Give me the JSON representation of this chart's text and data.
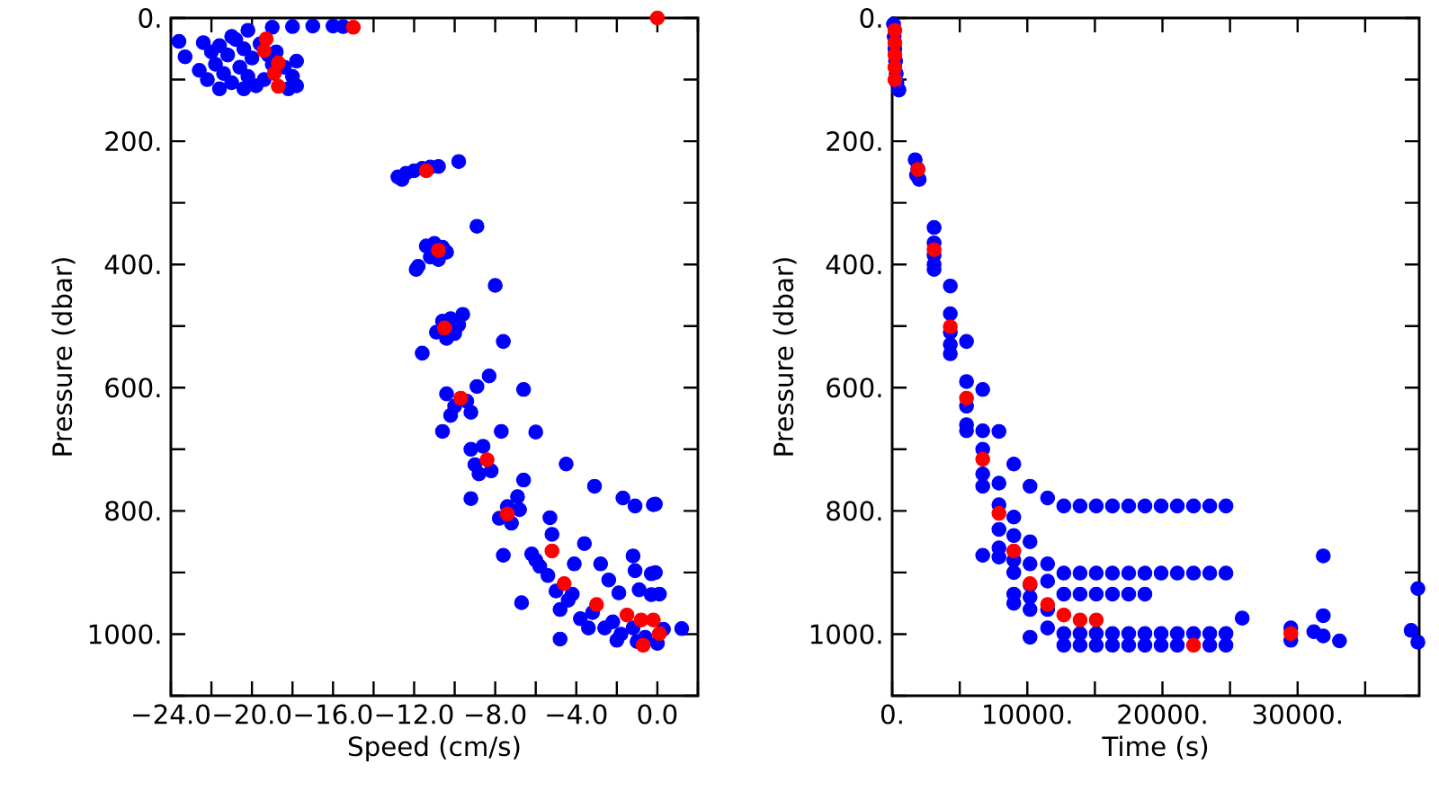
{
  "chart_data": [
    {
      "type": "scatter",
      "xlabel": "Speed (cm/s)",
      "ylabel": "Pressure (dbar)",
      "marker": "circle",
      "grid": false,
      "xlim": [
        -24,
        2
      ],
      "ylim": [
        1100,
        0
      ],
      "xticks": [
        {
          "value": -24,
          "label": "−24.0"
        },
        {
          "value": -22,
          "label": null
        },
        {
          "value": -20,
          "label": "−20.0"
        },
        {
          "value": -18,
          "label": null
        },
        {
          "value": -16,
          "label": "−16.0"
        },
        {
          "value": -14,
          "label": null
        },
        {
          "value": -12,
          "label": "−12.0"
        },
        {
          "value": -10,
          "label": null
        },
        {
          "value": -8,
          "label": "−8.0"
        },
        {
          "value": -6,
          "label": null
        },
        {
          "value": -4,
          "label": "−4.0"
        },
        {
          "value": -2,
          "label": null
        },
        {
          "value": 0,
          "label": "0.0"
        },
        {
          "value": 2,
          "label": null
        }
      ],
      "yticks": [
        {
          "value": 0,
          "label": "0."
        },
        {
          "value": 100,
          "label": null
        },
        {
          "value": 200,
          "label": "200."
        },
        {
          "value": 300,
          "label": null
        },
        {
          "value": 400,
          "label": "400."
        },
        {
          "value": 500,
          "label": null
        },
        {
          "value": 600,
          "label": "600."
        },
        {
          "value": 700,
          "label": null
        },
        {
          "value": 800,
          "label": "800."
        },
        {
          "value": 900,
          "label": null
        },
        {
          "value": 1000,
          "label": "1000."
        },
        {
          "value": 1100,
          "label": null
        }
      ],
      "series": [
        {
          "color": "#0000ff",
          "x": [
            -23.6,
            -23.3,
            -22.4,
            -22.0,
            -21.6,
            -21.2,
            -20.8,
            -20.4,
            -20.0,
            -19.6,
            -21.8,
            -21.4,
            -21.0,
            -20.6,
            -20.2,
            -19.8,
            -19.2,
            -18.8,
            -18.4,
            -18.0,
            -17.8,
            -18.2,
            -19.4,
            -20.4,
            -21.6,
            -22.6,
            -22.2,
            -20.2,
            -19.0,
            -17.8,
            -21.0,
            -19.0,
            -18.0,
            -17.0,
            -16.0,
            -15.5,
            -12.8,
            -12.4,
            -12.0,
            -11.6,
            -11.2,
            -12.6,
            -10.8,
            -9.8,
            -8.9,
            -11.4,
            -11.0,
            -10.6,
            -11.2,
            -10.8,
            -10.4,
            -11.8,
            -11.9,
            -8.0,
            -10.9,
            -10.6,
            -10.2,
            -9.8,
            -10.4,
            -10.0,
            -9.6,
            -11.6,
            -7.6,
            -10.4,
            -10.0,
            -9.4,
            -9.2,
            -10.2,
            -8.9,
            -8.3,
            -6.6,
            -10.6,
            -7.7,
            -6.0,
            -9.2,
            -8.8,
            -8.2,
            -9.0,
            -8.6,
            -6.6,
            -9.2,
            -4.5,
            -3.1,
            -1.7,
            -1.1,
            -0.2,
            -0.1,
            -7.8,
            -7.2,
            -6.8,
            -7.4,
            -6.9,
            -5.3,
            -5.2,
            -7.6,
            -3.6,
            -6.2,
            -5.8,
            -5.4,
            -6.0,
            -4.1,
            -2.8,
            -1.2,
            -1.1,
            -0.3,
            -0.1,
            -2.4,
            -1.9,
            -0.9,
            -0.3,
            0.1,
            -5.0,
            -4.4,
            -4.8,
            -4.2,
            -6.7,
            -4.8,
            -3.8,
            -3.2,
            -2.6,
            -2.2,
            -1.8,
            -1.2,
            -0.6,
            0.0,
            0.3,
            -3.4,
            -2.0,
            -1.0,
            1.2
          ],
          "values": [
            38,
            63,
            40,
            55,
            45,
            60,
            35,
            50,
            65,
            42,
            75,
            90,
            105,
            80,
            95,
            110,
            60,
            55,
            80,
            95,
            110,
            115,
            100,
            115,
            115,
            85,
            100,
            20,
            75,
            70,
            30,
            15,
            14,
            13,
            13,
            14,
            258,
            252,
            248,
            244,
            242,
            262,
            241,
            233,
            338,
            370,
            366,
            372,
            388,
            392,
            380,
            403,
            408,
            434,
            510,
            492,
            488,
            498,
            520,
            512,
            481,
            544,
            525,
            610,
            630,
            622,
            640,
            645,
            598,
            581,
            603,
            671,
            671,
            672,
            700,
            740,
            735,
            725,
            695,
            750,
            780,
            724,
            760,
            779,
            792,
            790,
            789,
            812,
            820,
            798,
            793,
            777,
            811,
            838,
            872,
            853,
            870,
            890,
            905,
            880,
            886,
            886,
            873,
            897,
            902,
            900,
            912,
            933,
            928,
            936,
            935,
            930,
            945,
            960,
            935,
            949,
            1008,
            975,
            965,
            990,
            980,
            1000,
            990,
            1005,
            1015,
            992,
            990,
            1010,
            1012,
            991
          ]
        },
        {
          "color": "#ff0000",
          "x": [
            -15.0,
            -19.3,
            -19.4,
            -18.7,
            -18.9,
            -18.7,
            0.0,
            -11.4,
            -10.8,
            -10.5,
            -9.7,
            -8.4,
            -7.4,
            -5.2,
            -4.6,
            -3.0,
            -1.5,
            -0.8,
            -0.2,
            0.1,
            -0.7
          ],
          "values": [
            15,
            34,
            53,
            73,
            90,
            111,
            0,
            248,
            377,
            503,
            617,
            717,
            805,
            865,
            918,
            952,
            969,
            977,
            977,
            999,
            1018
          ]
        }
      ]
    },
    {
      "type": "scatter",
      "xlabel": "Time (s)",
      "ylabel": "Pressure (dbar)",
      "marker": "circle",
      "grid": false,
      "xlim": [
        0,
        39000
      ],
      "ylim": [
        1100,
        0
      ],
      "xticks": [
        {
          "value": 0,
          "label": "0."
        },
        {
          "value": 5000,
          "label": null
        },
        {
          "value": 10000,
          "label": "10000."
        },
        {
          "value": 15000,
          "label": null
        },
        {
          "value": 20000,
          "label": "20000."
        },
        {
          "value": 25000,
          "label": null
        },
        {
          "value": 30000,
          "label": "30000."
        },
        {
          "value": 35000,
          "label": null
        }
      ],
      "yticks": [
        {
          "value": 0,
          "label": "0."
        },
        {
          "value": 100,
          "label": null
        },
        {
          "value": 200,
          "label": "200."
        },
        {
          "value": 300,
          "label": null
        },
        {
          "value": 400,
          "label": "400."
        },
        {
          "value": 500,
          "label": null
        },
        {
          "value": 600,
          "label": "600."
        },
        {
          "value": 700,
          "label": null
        },
        {
          "value": 800,
          "label": "800."
        },
        {
          "value": 900,
          "label": null
        },
        {
          "value": 1000,
          "label": "1000."
        },
        {
          "value": 1100,
          "label": null
        }
      ],
      "series": [
        {
          "color": "#0000ff",
          "x": [
            100,
            150,
            200,
            250,
            300,
            350,
            500,
            1700,
            1900,
            2000,
            1800,
            3100,
            3100,
            3100,
            3100,
            3100,
            4300,
            4300,
            4300,
            4300,
            4300,
            5500,
            5500,
            5500,
            5500,
            5500,
            6700,
            6700,
            6700,
            6700,
            6700,
            7900,
            7900,
            7900,
            7900,
            7900,
            7900,
            6700,
            9000,
            10200,
            11500,
            12700,
            13900,
            15100,
            16300,
            17500,
            18700,
            19900,
            21100,
            22300,
            23500,
            24700,
            9000,
            9000,
            9000,
            9000,
            9000,
            9000,
            10200,
            10200,
            10200,
            10200,
            10200,
            10200,
            11500,
            11500,
            11500,
            11500,
            12700,
            13900,
            15100,
            16300,
            17500,
            18700,
            19900,
            21100,
            22300,
            23500,
            24700,
            12700,
            13900,
            15100,
            16300,
            17500,
            18700,
            12700,
            13900,
            15100,
            16300,
            17500,
            18700,
            19900,
            21100,
            22300,
            23500,
            24700,
            12700,
            13900,
            15100,
            16300,
            17500,
            18700,
            19900,
            21100,
            22300,
            23500,
            24700,
            25900,
            29500,
            29500,
            31200,
            31900,
            31900,
            31900,
            33100,
            38400,
            38900,
            38900
          ],
          "values": [
            10,
            30,
            50,
            70,
            90,
            105,
            117,
            230,
            245,
            262,
            255,
            340,
            365,
            385,
            400,
            408,
            435,
            480,
            510,
            530,
            545,
            525,
            590,
            630,
            660,
            670,
            603,
            670,
            700,
            740,
            760,
            671,
            755,
            790,
            830,
            860,
            875,
            872,
            724,
            760,
            779,
            792,
            792,
            792,
            792,
            792,
            792,
            792,
            792,
            792,
            792,
            792,
            810,
            840,
            880,
            900,
            935,
            950,
            850,
            886,
            920,
            940,
            960,
            1005,
            886,
            914,
            960,
            990,
            901,
            901,
            901,
            901,
            901,
            901,
            901,
            901,
            901,
            901,
            901,
            935,
            935,
            935,
            935,
            935,
            935,
            999,
            999,
            999,
            999,
            999,
            999,
            999,
            999,
            999,
            999,
            999,
            1018,
            1018,
            1018,
            1018,
            1018,
            1018,
            1018,
            1018,
            null,
            1018,
            1018,
            974,
            990,
            1010,
            996,
            873,
            970,
            1003,
            1011,
            994,
            1013,
            926
          ]
        },
        {
          "color": "#ff0000",
          "x": [
            200,
            200,
            200,
            200,
            200,
            1900,
            3100,
            4300,
            5500,
            6700,
            7900,
            9000,
            10200,
            11500,
            12700,
            13900,
            15100,
            22300,
            29500
          ],
          "values": [
            20,
            40,
            60,
            80,
            100,
            246,
            376,
            501,
            617,
            716,
            804,
            865,
            918,
            952,
            969,
            977,
            977,
            1018,
            999
          ]
        }
      ]
    }
  ]
}
